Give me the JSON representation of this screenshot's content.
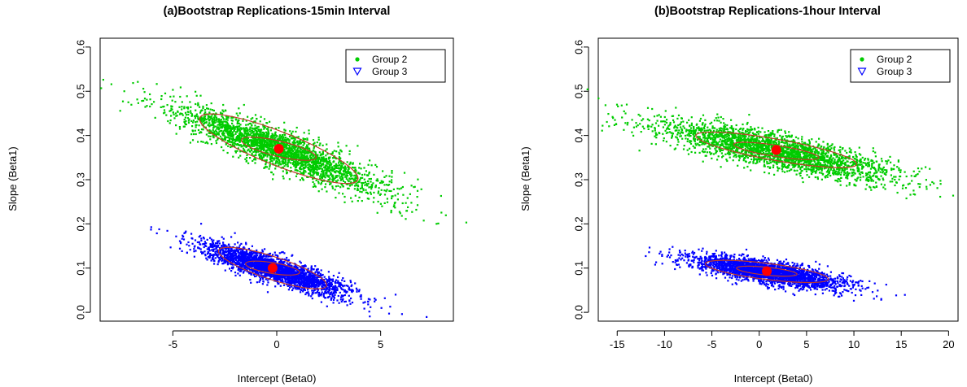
{
  "chart_data": [
    {
      "type": "scatter",
      "title": "(a)Bootstrap Replications-15min Interval",
      "xlabel": "Intercept (Beta0)",
      "ylabel": "Slope (Beta1)",
      "xlim": [
        -8.5,
        8.5
      ],
      "ylim": [
        -0.02,
        0.62
      ],
      "xticks": [
        -5,
        0,
        5
      ],
      "yticks": [
        0.0,
        0.1,
        0.2,
        0.3,
        0.4,
        0.5,
        0.6
      ],
      "ytick_labels": [
        "0.0",
        "0.1",
        "0.2",
        "0.3",
        "0.4",
        "0.5",
        "0.6"
      ],
      "legend_position": "top-right",
      "grid": false,
      "ellipse_color": "#c0392b",
      "center_marker_color": "#ff0000",
      "series": [
        {
          "name": "Group 2",
          "color": "#00cc00",
          "marker": "filled-circle",
          "center": [
            0.1,
            0.37
          ],
          "x_range": [
            -7.5,
            5.8
          ],
          "y_range": [
            0.28,
            0.52
          ],
          "ellipses": [
            {
              "x_half_width": 1.8,
              "y_at_x_min": 0.39,
              "y_at_x_max": 0.35
            },
            {
              "x_half_width": 3.8,
              "y_at_x_min": 0.44,
              "y_at_x_max": 0.3
            }
          ]
        },
        {
          "name": "Group 3",
          "color": "#0000ff",
          "marker": "open-triangle-down",
          "center": [
            -0.2,
            0.1
          ],
          "x_range": [
            -4.2,
            4.9
          ],
          "y_range": [
            0.03,
            0.17
          ],
          "ellipses": [
            {
              "x_half_width": 1.3,
              "y_at_x_min": 0.11,
              "y_at_x_max": 0.09
            },
            {
              "x_half_width": 2.6,
              "y_at_x_min": 0.14,
              "y_at_x_max": 0.06
            }
          ]
        }
      ]
    },
    {
      "type": "scatter",
      "title": "(b)Bootstrap Replications-1hour Interval",
      "xlabel": "Intercept (Beta0)",
      "ylabel": "Slope (Beta1)",
      "xlim": [
        -17,
        21
      ],
      "ylim": [
        -0.02,
        0.62
      ],
      "xticks": [
        -15,
        -10,
        -5,
        0,
        5,
        10,
        15,
        20
      ],
      "yticks": [
        0.0,
        0.1,
        0.2,
        0.3,
        0.4,
        0.5,
        0.6
      ],
      "ytick_labels": [
        "0.0",
        "0.1",
        "0.2",
        "0.3",
        "0.4",
        "0.5",
        "0.6"
      ],
      "legend_position": "top-right",
      "grid": false,
      "ellipse_color": "#c0392b",
      "center_marker_color": "#ff0000",
      "series": [
        {
          "name": "Group 2",
          "color": "#00cc00",
          "marker": "filled-circle",
          "center": [
            1.8,
            0.367
          ],
          "x_range": [
            -13,
            19
          ],
          "y_range": [
            0.29,
            0.43
          ],
          "ellipses": [
            {
              "x_half_width": 4.5,
              "y_at_x_min": 0.38,
              "y_at_x_max": 0.35
            },
            {
              "x_half_width": 8.5,
              "y_at_x_min": 0.4,
              "y_at_x_max": 0.335
            }
          ]
        },
        {
          "name": "Group 3",
          "color": "#0000ff",
          "marker": "open-triangle-down",
          "center": [
            0.8,
            0.093
          ],
          "x_range": [
            -9,
            11.5
          ],
          "y_range": [
            0.06,
            0.13
          ],
          "ellipses": [
            {
              "x_half_width": 3.2,
              "y_at_x_min": 0.1,
              "y_at_x_max": 0.086
            },
            {
              "x_half_width": 6.5,
              "y_at_x_min": 0.11,
              "y_at_x_max": 0.075
            }
          ]
        }
      ]
    }
  ]
}
